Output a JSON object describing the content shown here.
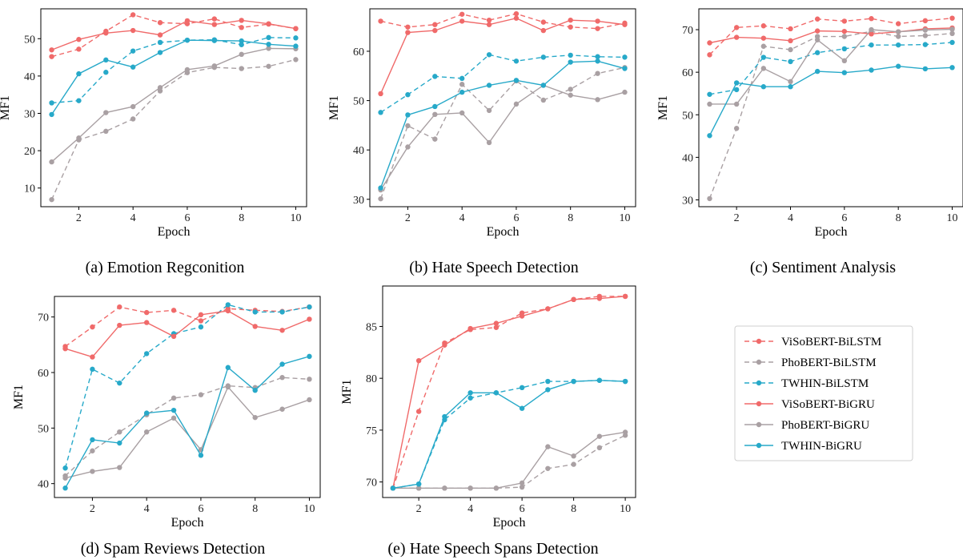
{
  "colors": {
    "ViSoBERT": "#f06a6a",
    "PhoBERT": "#a9a0a3",
    "TWHIN": "#27a9c9"
  },
  "legend": {
    "placement": "right, below panel (c)",
    "entries": [
      {
        "label": "ViSoBERT-BiLSTM",
        "model": "ViSoBERT",
        "style": "dashed"
      },
      {
        "label": "PhoBERT-BiLSTM",
        "model": "PhoBERT",
        "style": "dashed"
      },
      {
        "label": "TWHIN-BiLSTM",
        "model": "TWHIN",
        "style": "dashed"
      },
      {
        "label": "ViSoBERT-BiGRU",
        "model": "ViSoBERT",
        "style": "solid"
      },
      {
        "label": "PhoBERT-BiGRU",
        "model": "PhoBERT",
        "style": "solid"
      },
      {
        "label": "TWHIN-BiGRU",
        "model": "TWHIN",
        "style": "solid"
      }
    ]
  },
  "chart_data": [
    {
      "type": "line",
      "caption": "(a) Emotion Regconition",
      "xlabel": "Epoch",
      "ylabel": "MF1",
      "x": [
        1,
        2,
        3,
        4,
        5,
        6,
        7,
        8,
        9,
        10
      ],
      "xticks": [
        2,
        4,
        6,
        8,
        10
      ],
      "xlim": [
        0.6,
        10.4
      ],
      "yticks": [
        10,
        20,
        30,
        40,
        50
      ],
      "ylim": [
        5,
        58
      ],
      "grid": false,
      "series": [
        {
          "name": "ViSoBERT-BiLSTM",
          "values": [
            45.2,
            47.2,
            52.0,
            56.4,
            54.3,
            54.0,
            55.3,
            53.0,
            53.9,
            52.7
          ]
        },
        {
          "name": "PhoBERT-BiLSTM",
          "values": [
            6.9,
            22.9,
            25.2,
            28.5,
            36.0,
            40.9,
            42.3,
            42.0,
            42.6,
            44.4
          ]
        },
        {
          "name": "TWHIN-BiLSTM",
          "values": [
            32.8,
            33.4,
            41.0,
            46.7,
            49.0,
            49.6,
            49.7,
            48.4,
            50.3,
            50.2
          ]
        },
        {
          "name": "ViSoBERT-BiGRU",
          "values": [
            47.0,
            49.8,
            51.5,
            52.2,
            51.0,
            54.8,
            53.8,
            54.9,
            54.0,
            52.7
          ]
        },
        {
          "name": "PhoBERT-BiGRU",
          "values": [
            17.0,
            23.4,
            30.2,
            31.8,
            36.9,
            41.7,
            42.7,
            45.8,
            47.4,
            47.3
          ]
        },
        {
          "name": "TWHIN-BiGRU",
          "values": [
            29.7,
            40.6,
            44.3,
            42.4,
            46.3,
            49.6,
            49.5,
            49.4,
            48.5,
            48.0
          ]
        }
      ]
    },
    {
      "type": "line",
      "caption": "(b) Hate Speech Detection",
      "xlabel": "Epoch",
      "ylabel": "MF1",
      "x": [
        1,
        2,
        3,
        4,
        5,
        6,
        7,
        8,
        9,
        10
      ],
      "xticks": [
        2,
        4,
        6,
        8,
        10
      ],
      "xlim": [
        0.6,
        10.4
      ],
      "yticks": [
        30,
        40,
        50,
        60
      ],
      "ylim": [
        28.5,
        68.6
      ],
      "grid": false,
      "series": [
        {
          "name": "ViSoBERT-BiLSTM",
          "values": [
            66.1,
            64.9,
            65.4,
            67.5,
            66.3,
            67.6,
            65.9,
            64.9,
            64.6,
            65.7
          ]
        },
        {
          "name": "PhoBERT-BiLSTM",
          "values": [
            30.1,
            44.9,
            42.2,
            53.3,
            48.0,
            54.0,
            50.1,
            52.3,
            55.5,
            56.7
          ]
        },
        {
          "name": "TWHIN-BiLSTM",
          "values": [
            47.6,
            51.2,
            54.9,
            54.5,
            59.3,
            58.0,
            58.8,
            59.2,
            58.9,
            58.8
          ]
        },
        {
          "name": "ViSoBERT-BiGRU",
          "values": [
            51.4,
            63.8,
            64.2,
            66.1,
            65.4,
            66.7,
            64.2,
            66.3,
            66.1,
            65.4
          ]
        },
        {
          "name": "PhoBERT-BiGRU",
          "values": [
            31.9,
            40.6,
            47.2,
            47.5,
            41.5,
            49.3,
            53.1,
            51.1,
            50.2,
            51.7
          ]
        },
        {
          "name": "TWHIN-BiGRU",
          "values": [
            32.3,
            47.1,
            48.8,
            51.7,
            53.1,
            54.1,
            53.1,
            57.8,
            58.0,
            56.5
          ]
        }
      ]
    },
    {
      "type": "line",
      "caption": "(c) Sentiment Analysis",
      "xlabel": "Epoch",
      "ylabel": "MF1",
      "x": [
        1,
        2,
        3,
        4,
        5,
        6,
        7,
        8,
        9,
        10
      ],
      "xticks": [
        2,
        4,
        6,
        8,
        10
      ],
      "xlim": [
        0.6,
        10.4
      ],
      "yticks": [
        30,
        40,
        50,
        60,
        70
      ],
      "ylim": [
        28.4,
        74.9
      ],
      "grid": false,
      "series": [
        {
          "name": "ViSoBERT-BiLSTM",
          "values": [
            64.1,
            70.5,
            70.9,
            70.2,
            72.5,
            72.0,
            72.6,
            71.4,
            72.1,
            72.7
          ]
        },
        {
          "name": "PhoBERT-BiLSTM",
          "values": [
            30.3,
            46.8,
            66.1,
            65.3,
            68.4,
            68.4,
            69.6,
            68.4,
            68.6,
            69.1
          ]
        },
        {
          "name": "TWHIN-BiLSTM",
          "values": [
            54.8,
            55.9,
            63.5,
            62.5,
            64.6,
            65.5,
            66.4,
            66.4,
            66.5,
            67.0
          ]
        },
        {
          "name": "ViSoBERT-BiGRU",
          "values": [
            66.9,
            68.2,
            68.0,
            67.4,
            69.7,
            69.6,
            69.0,
            69.5,
            70.2,
            70.4
          ]
        },
        {
          "name": "PhoBERT-BiGRU",
          "values": [
            52.5,
            52.5,
            60.9,
            57.8,
            67.6,
            62.7,
            70.0,
            69.5,
            69.9,
            70.1
          ]
        },
        {
          "name": "TWHIN-BiGRU",
          "values": [
            45.1,
            57.5,
            56.6,
            56.6,
            60.2,
            59.9,
            60.5,
            61.4,
            60.8,
            61.1
          ]
        }
      ]
    },
    {
      "type": "line",
      "caption": "(d) Spam Reviews Detection",
      "xlabel": "Epoch",
      "ylabel": "MF1",
      "x": [
        1,
        2,
        3,
        4,
        5,
        6,
        7,
        8,
        9,
        10
      ],
      "xticks": [
        2,
        4,
        6,
        8,
        10
      ],
      "xlim": [
        0.6,
        10.4
      ],
      "yticks": [
        40,
        50,
        60,
        70
      ],
      "ylim": [
        37.5,
        73.7
      ],
      "grid": false,
      "series": [
        {
          "name": "ViSoBERT-BiLSTM",
          "values": [
            64.7,
            68.2,
            71.8,
            70.8,
            71.2,
            69.3,
            71.5,
            71.2,
            71.0,
            71.8
          ]
        },
        {
          "name": "PhoBERT-BiLSTM",
          "values": [
            41.4,
            45.9,
            49.3,
            52.4,
            55.4,
            56.0,
            57.6,
            57.3,
            59.1,
            58.8
          ]
        },
        {
          "name": "TWHIN-BiLSTM",
          "values": [
            42.8,
            60.6,
            58.1,
            63.4,
            67.0,
            68.2,
            72.2,
            70.9,
            70.9,
            71.8
          ]
        },
        {
          "name": "ViSoBERT-BiGRU",
          "values": [
            64.3,
            62.8,
            68.5,
            69.0,
            66.5,
            70.4,
            71.1,
            68.3,
            67.6,
            69.6
          ]
        },
        {
          "name": "PhoBERT-BiGRU",
          "values": [
            41.0,
            42.2,
            42.9,
            49.3,
            51.8,
            46.1,
            57.4,
            51.9,
            53.4,
            55.1
          ]
        },
        {
          "name": "TWHIN-BiGRU",
          "values": [
            39.2,
            47.9,
            47.3,
            52.7,
            53.2,
            45.1,
            60.9,
            56.8,
            61.5,
            62.9
          ]
        }
      ]
    },
    {
      "type": "line",
      "caption": "(e) Hate Speech Spans Detection",
      "xlabel": "Epoch",
      "ylabel": "MF1",
      "x": [
        1,
        2,
        3,
        4,
        5,
        6,
        7,
        8,
        9,
        10
      ],
      "xticks": [
        2,
        4,
        6,
        8,
        10
      ],
      "xlim": [
        0.6,
        10.4
      ],
      "yticks": [
        70,
        75,
        80,
        85
      ],
      "ylim": [
        68.5,
        88.9
      ],
      "grid": false,
      "series": [
        {
          "name": "ViSoBERT-BiLSTM",
          "values": [
            69.4,
            76.8,
            83.4,
            84.7,
            84.9,
            86.3,
            86.7,
            87.6,
            87.9,
            87.9
          ]
        },
        {
          "name": "PhoBERT-BiLSTM",
          "values": [
            69.4,
            69.4,
            69.4,
            69.4,
            69.4,
            69.5,
            71.3,
            71.7,
            73.3,
            74.5
          ]
        },
        {
          "name": "TWHIN-BiLSTM",
          "values": [
            69.4,
            69.8,
            76.0,
            78.1,
            78.6,
            79.1,
            79.7,
            79.7,
            79.8,
            79.7
          ]
        },
        {
          "name": "ViSoBERT-BiGRU",
          "values": [
            69.4,
            81.7,
            83.2,
            84.8,
            85.3,
            86.0,
            86.7,
            87.6,
            87.7,
            87.9
          ]
        },
        {
          "name": "PhoBERT-BiGRU",
          "values": [
            69.4,
            69.4,
            69.4,
            69.4,
            69.4,
            69.9,
            73.4,
            72.5,
            74.4,
            74.8
          ]
        },
        {
          "name": "TWHIN-BiGRU",
          "values": [
            69.4,
            69.8,
            76.3,
            78.6,
            78.6,
            77.1,
            78.9,
            79.7,
            79.8,
            79.7
          ]
        }
      ]
    }
  ]
}
